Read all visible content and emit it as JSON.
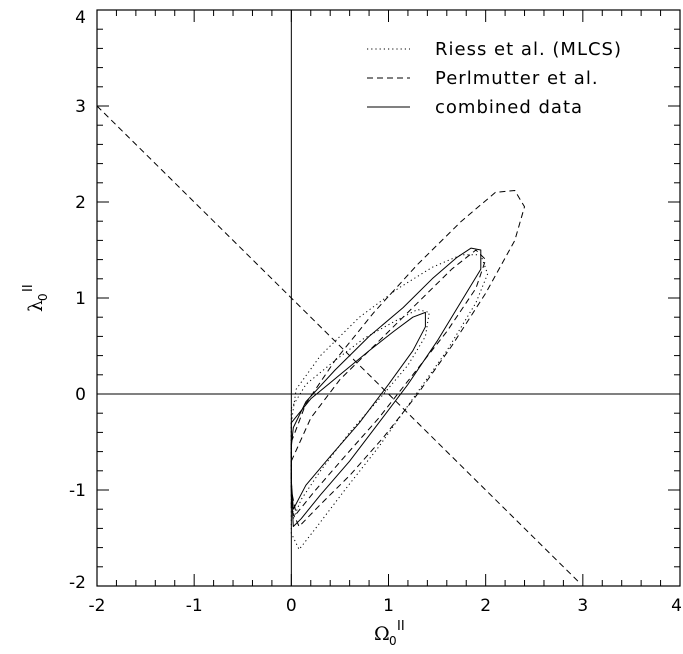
{
  "chart_data": {
    "type": "line",
    "title": "",
    "x_axis": {
      "label_symbol": "Ω",
      "label_sub": "0",
      "label_sup": "II",
      "range": [
        -2,
        4
      ],
      "ticks": [
        "-2",
        "-1",
        "0",
        "1",
        "2",
        "3",
        "4"
      ]
    },
    "y_axis": {
      "label_symbol": "λ",
      "label_sub": "0",
      "label_sup": "II",
      "range": [
        -2,
        4
      ],
      "ticks": [
        "-2",
        "-1",
        "0",
        "1",
        "2",
        "3",
        "4"
      ]
    },
    "grid": false,
    "legend_position": "top-right",
    "legend": [
      {
        "label": "Riess et al. (MLCS)",
        "style": "dotted"
      },
      {
        "label": "Perlmutter et al.",
        "style": "dashed"
      },
      {
        "label": "combined data",
        "style": "solid"
      }
    ],
    "reference_lines": [
      {
        "kind": "vertical",
        "x": 0,
        "style": "solid"
      },
      {
        "kind": "horizontal",
        "y": 0,
        "style": "solid"
      },
      {
        "kind": "line",
        "points": [
          [
            -2,
            3
          ],
          [
            2.95,
            -1.95
          ]
        ],
        "style": "dashed"
      }
    ],
    "contours": [
      {
        "series": "combined data",
        "level": "inner",
        "style": "solid",
        "points": [
          [
            0.0,
            -0.3
          ],
          [
            0.2,
            -0.05
          ],
          [
            0.5,
            0.2
          ],
          [
            0.8,
            0.45
          ],
          [
            1.05,
            0.65
          ],
          [
            1.25,
            0.8
          ],
          [
            1.38,
            0.85
          ],
          [
            1.38,
            0.7
          ],
          [
            1.25,
            0.45
          ],
          [
            1.0,
            0.1
          ],
          [
            0.7,
            -0.3
          ],
          [
            0.4,
            -0.65
          ],
          [
            0.15,
            -0.95
          ],
          [
            0.02,
            -1.2
          ],
          [
            0.0,
            -0.9
          ],
          [
            0.0,
            -0.3
          ]
        ]
      },
      {
        "series": "combined data",
        "level": "outer",
        "style": "solid",
        "points": [
          [
            0.0,
            -0.55
          ],
          [
            0.02,
            -0.35
          ],
          [
            0.15,
            -0.08
          ],
          [
            0.45,
            0.25
          ],
          [
            0.8,
            0.6
          ],
          [
            1.15,
            0.9
          ],
          [
            1.45,
            1.2
          ],
          [
            1.7,
            1.42
          ],
          [
            1.85,
            1.52
          ],
          [
            1.95,
            1.5
          ],
          [
            1.95,
            1.3
          ],
          [
            1.8,
            1.05
          ],
          [
            1.5,
            0.55
          ],
          [
            1.2,
            0.1
          ],
          [
            0.9,
            -0.3
          ],
          [
            0.6,
            -0.7
          ],
          [
            0.3,
            -1.05
          ],
          [
            0.1,
            -1.3
          ],
          [
            0.02,
            -1.38
          ],
          [
            0.0,
            -1.0
          ],
          [
            0.0,
            -0.55
          ]
        ]
      },
      {
        "series": "Riess et al. (MLCS)",
        "level": "inner",
        "style": "dotted",
        "points": [
          [
            0.0,
            -0.15
          ],
          [
            0.15,
            0.1
          ],
          [
            0.45,
            0.35
          ],
          [
            0.75,
            0.58
          ],
          [
            1.05,
            0.75
          ],
          [
            1.3,
            0.88
          ],
          [
            1.42,
            0.85
          ],
          [
            1.38,
            0.6
          ],
          [
            1.2,
            0.3
          ],
          [
            0.95,
            0.0
          ],
          [
            0.6,
            -0.4
          ],
          [
            0.3,
            -0.8
          ],
          [
            0.1,
            -1.1
          ],
          [
            0.02,
            -1.3
          ],
          [
            0.0,
            -0.9
          ],
          [
            0.0,
            -0.15
          ]
        ]
      },
      {
        "series": "Riess et al. (MLCS)",
        "level": "outer",
        "style": "dotted",
        "points": [
          [
            0.0,
            -0.3
          ],
          [
            0.05,
            0.05
          ],
          [
            0.3,
            0.4
          ],
          [
            0.7,
            0.8
          ],
          [
            1.1,
            1.1
          ],
          [
            1.45,
            1.32
          ],
          [
            1.75,
            1.45
          ],
          [
            1.95,
            1.45
          ],
          [
            2.02,
            1.25
          ],
          [
            1.9,
            0.95
          ],
          [
            1.6,
            0.45
          ],
          [
            1.25,
            -0.05
          ],
          [
            0.9,
            -0.55
          ],
          [
            0.55,
            -1.0
          ],
          [
            0.25,
            -1.4
          ],
          [
            0.08,
            -1.62
          ],
          [
            0.0,
            -1.45
          ],
          [
            0.0,
            -0.3
          ]
        ]
      },
      {
        "series": "Perlmutter et al.",
        "level": "inner",
        "style": "dashed",
        "points": [
          [
            0.0,
            -0.7
          ],
          [
            0.2,
            -0.25
          ],
          [
            0.5,
            0.15
          ],
          [
            0.9,
            0.55
          ],
          [
            1.3,
            0.95
          ],
          [
            1.65,
            1.3
          ],
          [
            1.9,
            1.5
          ],
          [
            2.0,
            1.4
          ],
          [
            1.9,
            1.1
          ],
          [
            1.6,
            0.65
          ],
          [
            1.25,
            0.2
          ],
          [
            0.9,
            -0.25
          ],
          [
            0.55,
            -0.65
          ],
          [
            0.25,
            -1.0
          ],
          [
            0.05,
            -1.25
          ],
          [
            0.0,
            -1.0
          ],
          [
            0.0,
            -0.7
          ]
        ]
      },
      {
        "series": "Perlmutter et al.",
        "level": "outer",
        "style": "dashed",
        "points": [
          [
            0.0,
            -0.5
          ],
          [
            0.15,
            -0.1
          ],
          [
            0.45,
            0.35
          ],
          [
            0.85,
            0.85
          ],
          [
            1.3,
            1.35
          ],
          [
            1.75,
            1.8
          ],
          [
            2.1,
            2.1
          ],
          [
            2.3,
            2.12
          ],
          [
            2.4,
            1.95
          ],
          [
            2.3,
            1.6
          ],
          [
            2.0,
            1.05
          ],
          [
            1.65,
            0.5
          ],
          [
            1.3,
            0.0
          ],
          [
            0.95,
            -0.45
          ],
          [
            0.6,
            -0.85
          ],
          [
            0.3,
            -1.15
          ],
          [
            0.08,
            -1.38
          ],
          [
            0.0,
            -1.2
          ],
          [
            0.0,
            -0.5
          ]
        ]
      }
    ]
  }
}
